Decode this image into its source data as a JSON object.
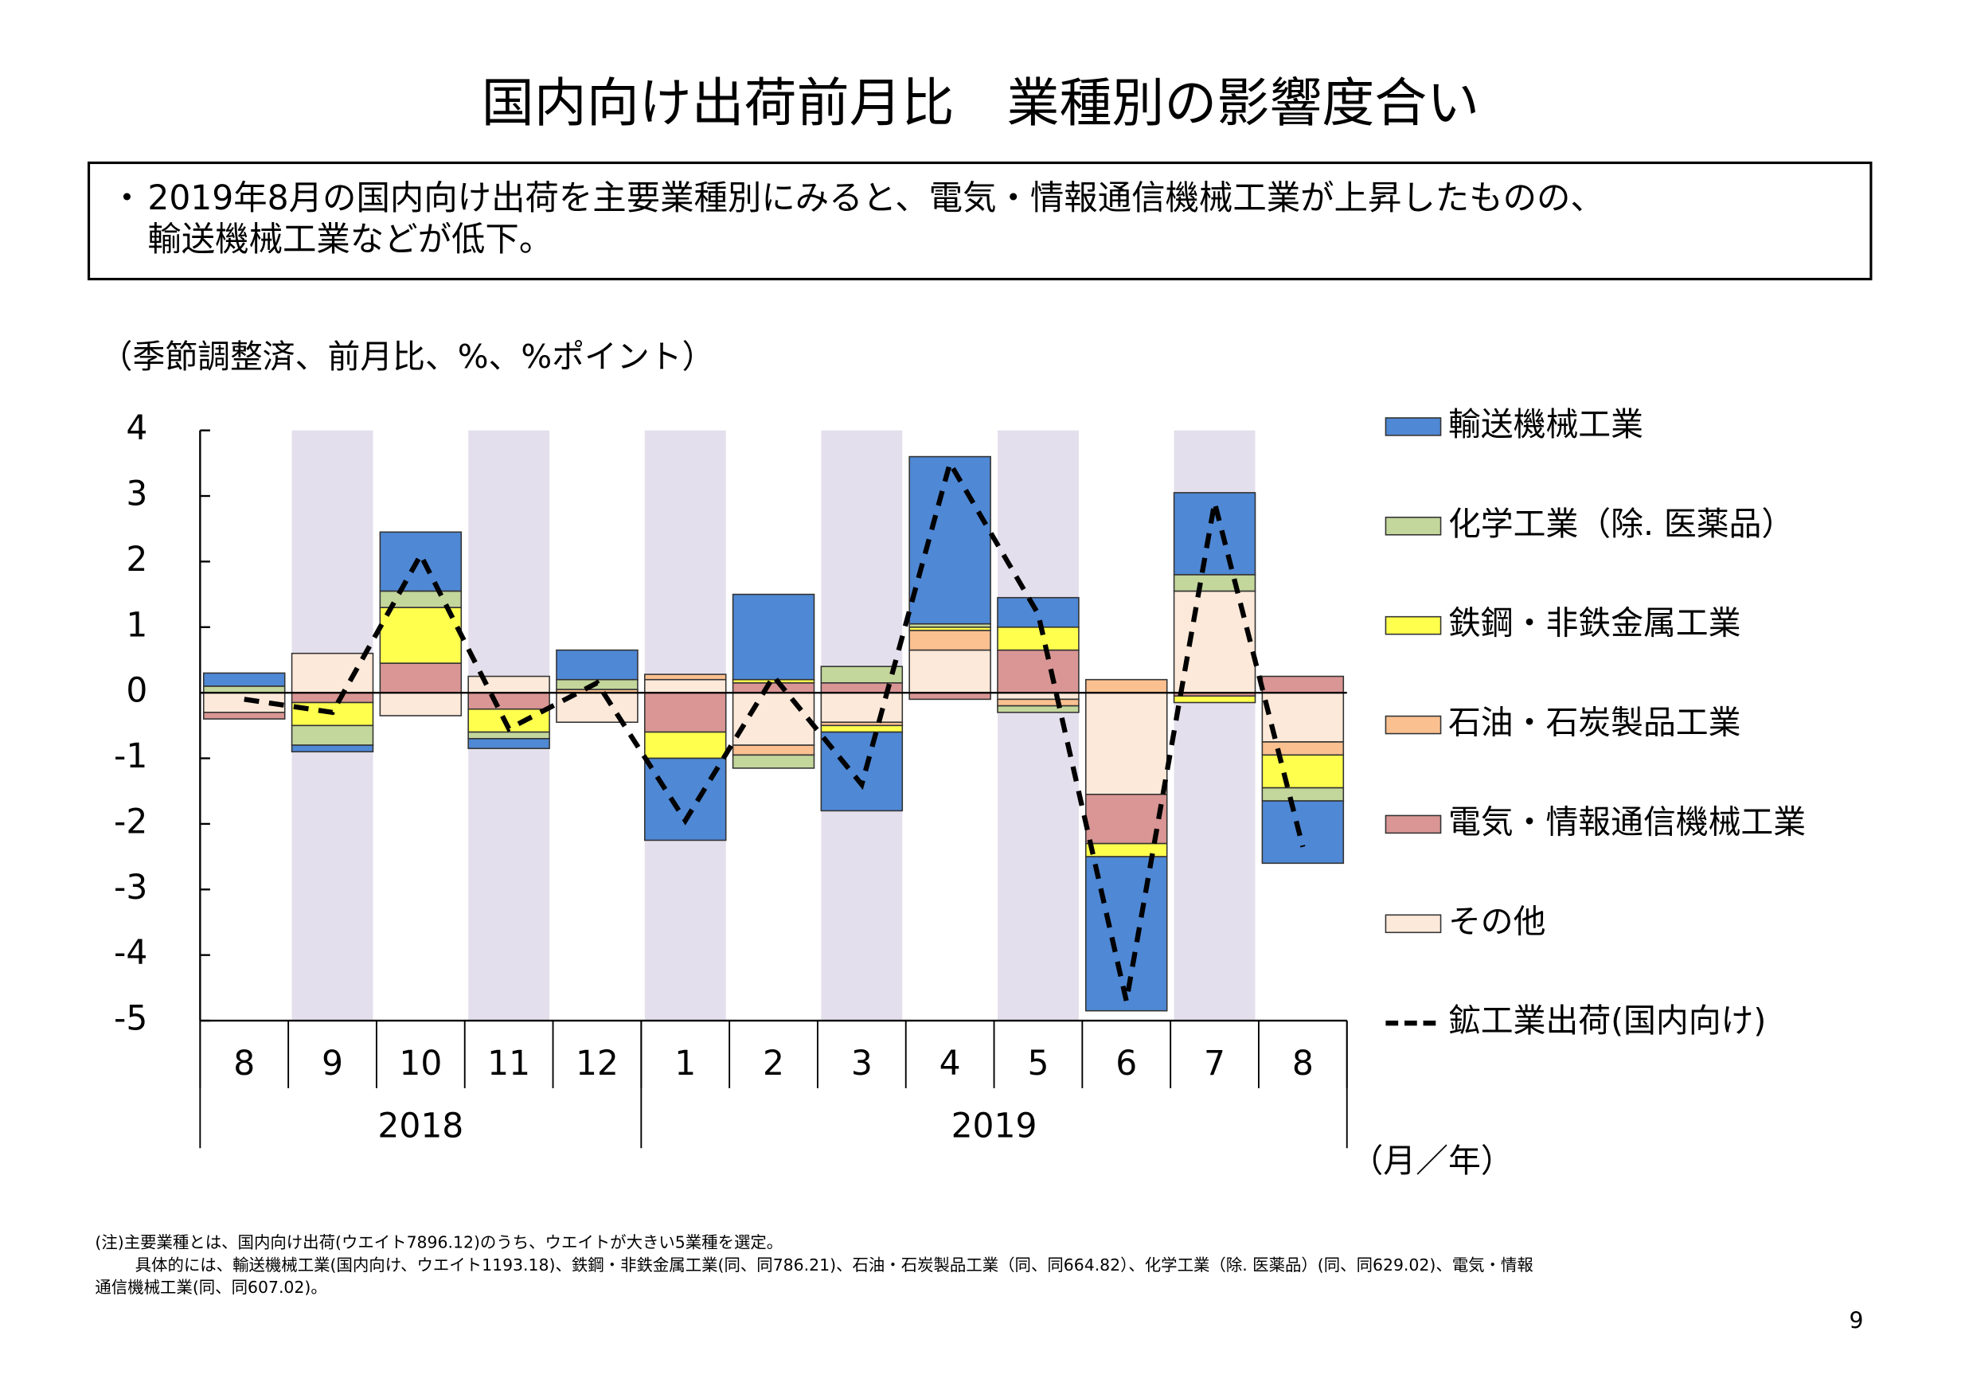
{
  "title": "国内向け出荷前月比　業種別の影響度合い",
  "summary": {
    "bullet": "・",
    "lines": [
      "2019年8月の国内向け出荷を主要業種別にみると、電気・情報通信機械工業が上昇したものの、",
      "輸送機械工業などが低下。"
    ]
  },
  "chart_data": {
    "type": "bar",
    "stacked": true,
    "unit_label": "（季節調整済、前月比、%、%ポイント）",
    "x_label": "（月／年）",
    "categories": [
      "8",
      "9",
      "10",
      "11",
      "12",
      "1",
      "2",
      "3",
      "4",
      "5",
      "6",
      "7",
      "8"
    ],
    "groups": [
      {
        "label": "2018",
        "count": 5
      },
      {
        "label": "2019",
        "count": 8
      }
    ],
    "shaded_color": "#e4dfec",
    "shaded": [
      false,
      true,
      false,
      true,
      false,
      true,
      false,
      true,
      false,
      true,
      false,
      true,
      false
    ],
    "ylim": [
      -5,
      4
    ],
    "yticks": [
      4,
      3,
      2,
      1,
      0,
      -1,
      -2,
      -3,
      -4,
      -5
    ],
    "series": [
      {
        "name": "輸送機械工業",
        "color": "#4f88d4",
        "values": [
          0.2,
          -0.1,
          0.9,
          -0.15,
          0.45,
          -1.25,
          1.3,
          -1.2,
          2.55,
          0.45,
          -2.35,
          1.25,
          -0.95
        ]
      },
      {
        "name": "化学工業（除.  医薬品）",
        "color": "#c3d69b",
        "values": [
          0.1,
          -0.3,
          0.25,
          -0.1,
          0.15,
          0,
          -0.2,
          0.25,
          0.05,
          -0.1,
          0,
          0.25,
          -0.2
        ]
      },
      {
        "name": "鉄鋼・非鉄金属工業",
        "color": "#ffff4d",
        "values": [
          0,
          -0.35,
          0.85,
          -0.35,
          0,
          -0.4,
          0.05,
          -0.1,
          0.05,
          0.35,
          -0.2,
          -0.1,
          -0.5
        ]
      },
      {
        "name": "石油・石炭製品工業",
        "color": "#fac090",
        "values": [
          0,
          0,
          0,
          0,
          0.05,
          0.08,
          -0.15,
          -0.05,
          0.3,
          -0.1,
          0.2,
          0,
          -0.2
        ]
      },
      {
        "name": "電気・情報通信機械工業",
        "color": "#d99694",
        "values": [
          -0.1,
          -0.15,
          0.45,
          -0.25,
          0,
          -0.6,
          0.15,
          0.15,
          -0.1,
          0.65,
          -0.75,
          -0.05,
          0.25
        ]
      },
      {
        "name": "その他",
        "color": "#fde9d9",
        "values": [
          -0.3,
          0.6,
          -0.35,
          0.25,
          -0.45,
          0.2,
          -0.8,
          -0.45,
          0.65,
          -0.1,
          -1.55,
          1.55,
          -0.75
        ]
      },
      {
        "name": "鉱工業出荷(国内向け)",
        "type": "line",
        "color": "#000000",
        "values": [
          -0.1,
          -0.3,
          2.1,
          -0.55,
          0.15,
          -1.95,
          0.25,
          -1.4,
          3.5,
          1.2,
          -4.7,
          2.9,
          -2.35
        ]
      }
    ]
  },
  "notes": [
    "(注)主要業種とは、国内向け出荷(ウエイト7896.12)のうち、ウエイトが大きい5業種を選定。",
    "具体的には、輸送機械工業(国内向け、ウエイト1193.18)、鉄鋼・非鉄金属工業(同、同786.21)、石油・石炭製品工業（同、同664.82）、化学工業（除. 医薬品）(同、同629.02)、電気・情報",
    "通信機械工業(同、同607.02)。"
  ],
  "page_number": "9"
}
